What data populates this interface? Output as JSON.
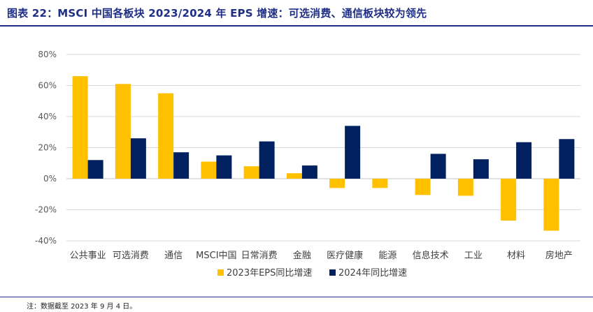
{
  "title": "图表 22：MSCI 中国各板块 2023/2024 年 EPS 增速：可选消费、通信板块较为领先",
  "note": "注：数据截至 2023 年 9 月 4 日。",
  "colors": {
    "title": "#1f2f86",
    "series_2023": "#FFC000",
    "series_2024": "#002060",
    "grid": "#d9d9d9",
    "axis_text": "#595959"
  },
  "chart_data": {
    "type": "bar",
    "categories": [
      "公共事业",
      "可选消费",
      "通信",
      "MSCI中国",
      "日常消费",
      "金融",
      "医疗健康",
      "能源",
      "信息技术",
      "工业",
      "材料",
      "房地产"
    ],
    "series": [
      {
        "name": "2023年EPS同比增速",
        "values": [
          66,
          61,
          55,
          11,
          8,
          3.5,
          -6,
          -6,
          -10.5,
          -11,
          -27,
          -33.5
        ]
      },
      {
        "name": "2024年同比增速",
        "values": [
          12,
          26,
          17,
          15,
          24,
          8.5,
          34,
          null,
          16,
          12.5,
          23.5,
          25.5
        ]
      }
    ],
    "yticks": [
      "80%",
      "60%",
      "40%",
      "20%",
      "0%",
      "-20%",
      "-40%"
    ],
    "ylim": [
      -40,
      80
    ],
    "unit": "%",
    "grid": true,
    "legend_position": "bottom"
  }
}
